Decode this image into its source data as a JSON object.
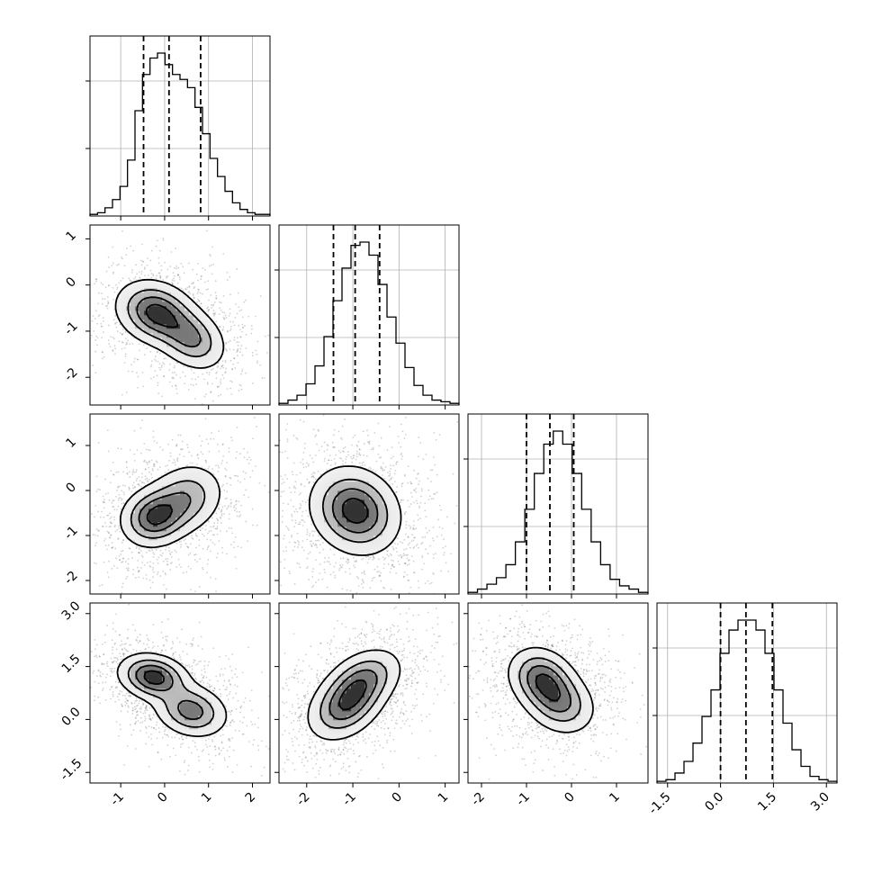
{
  "chart_data": {
    "type": "corner",
    "parameters": [
      {
        "range": [
          -1.7,
          2.4
        ],
        "ticks": [
          -1,
          0,
          1,
          2
        ],
        "quantiles": [
          -0.48,
          0.1,
          0.82
        ],
        "hist": [
          1,
          2,
          5,
          10,
          18,
          34,
          64,
          86,
          96,
          99,
          92,
          86,
          83,
          78,
          66,
          50,
          35,
          24,
          15,
          8,
          4,
          2,
          1,
          1
        ]
      },
      {
        "range": [
          -2.6,
          1.3
        ],
        "ticks": [
          -2,
          -1,
          0,
          1
        ],
        "quantiles": [
          -1.42,
          -0.95,
          -0.42
        ],
        "hist": [
          1,
          3,
          6,
          13,
          24,
          42,
          64,
          84,
          98,
          100,
          92,
          74,
          54,
          38,
          23,
          12,
          6,
          3,
          2,
          1
        ]
      },
      {
        "range": [
          -2.3,
          1.7
        ],
        "ticks": [
          -2,
          -1,
          0,
          1
        ],
        "quantiles": [
          -1.0,
          -0.48,
          0.05
        ],
        "hist": [
          1,
          3,
          6,
          10,
          18,
          32,
          52,
          74,
          92,
          100,
          92,
          74,
          52,
          32,
          18,
          9,
          5,
          3,
          1
        ]
      },
      {
        "range": [
          -1.8,
          3.3
        ],
        "ticks": [
          -1.5,
          0.0,
          1.5,
          3.0
        ],
        "quantiles": [
          0.0,
          0.72,
          1.47
        ],
        "hist": [
          1,
          2,
          6,
          13,
          24,
          40,
          56,
          78,
          92,
          98,
          98,
          92,
          78,
          56,
          36,
          20,
          10,
          4,
          2,
          1
        ]
      }
    ],
    "tick_labels": {
      "x": [
        [
          "-1",
          "0",
          "1",
          "2"
        ],
        [
          "-2",
          "-1",
          "0",
          "1"
        ],
        [
          "-2",
          "-1",
          "0",
          "1"
        ],
        [
          "-1.5",
          "0.0",
          "1.5",
          "3.0"
        ]
      ],
      "y": [
        [
          "1",
          "0",
          "-1",
          "-2"
        ],
        [
          "1",
          "0",
          "-1",
          "-2"
        ],
        [
          "3.0",
          "1.5",
          "0.0",
          "-1.5"
        ]
      ]
    },
    "pairs": [
      {
        "x": 0,
        "y": 1,
        "blobs": [
          {
            "cx": -0.2,
            "cy": -0.6,
            "sx": 0.45,
            "sy": 0.35,
            "rho": -0.2,
            "w": 1.0
          },
          {
            "cx": 0.6,
            "cy": -1.15,
            "sx": 0.4,
            "sy": 0.35,
            "rho": -0.3,
            "w": 0.7
          }
        ]
      },
      {
        "x": 0,
        "y": 2,
        "blobs": [
          {
            "cx": -0.25,
            "cy": -0.6,
            "sx": 0.38,
            "sy": 0.33,
            "rho": 0.1,
            "w": 1.0
          },
          {
            "cx": 0.45,
            "cy": -0.2,
            "sx": 0.45,
            "sy": 0.4,
            "rho": 0.2,
            "w": 0.7
          }
        ]
      },
      {
        "x": 1,
        "y": 2,
        "blobs": [
          {
            "cx": -0.95,
            "cy": -0.45,
            "sx": 0.48,
            "sy": 0.48,
            "rho": -0.15,
            "w": 1.0
          }
        ]
      },
      {
        "x": 0,
        "y": 3,
        "blobs": [
          {
            "cx": -0.25,
            "cy": 1.2,
            "sx": 0.4,
            "sy": 0.33,
            "rho": -0.2,
            "w": 1.0
          },
          {
            "cx": 0.6,
            "cy": 0.25,
            "sx": 0.42,
            "sy": 0.38,
            "rho": -0.2,
            "w": 0.75
          }
        ]
      },
      {
        "x": 1,
        "y": 3,
        "blobs": [
          {
            "cx": -1.15,
            "cy": 0.4,
            "sx": 0.42,
            "sy": 0.5,
            "rho": 0.35,
            "w": 1.0
          },
          {
            "cx": -0.75,
            "cy": 1.15,
            "sx": 0.42,
            "sy": 0.45,
            "rho": 0.35,
            "w": 0.75
          }
        ]
      },
      {
        "x": 2,
        "y": 3,
        "blobs": [
          {
            "cx": -0.65,
            "cy": 1.15,
            "sx": 0.38,
            "sy": 0.45,
            "rho": -0.2,
            "w": 1.0
          },
          {
            "cx": -0.25,
            "cy": 0.45,
            "sx": 0.4,
            "sy": 0.45,
            "rho": -0.2,
            "w": 0.75
          }
        ]
      }
    ],
    "grid": true,
    "colors": {
      "ink": "#000000",
      "grid": "#b0b0b0",
      "background": "#ffffff"
    }
  }
}
